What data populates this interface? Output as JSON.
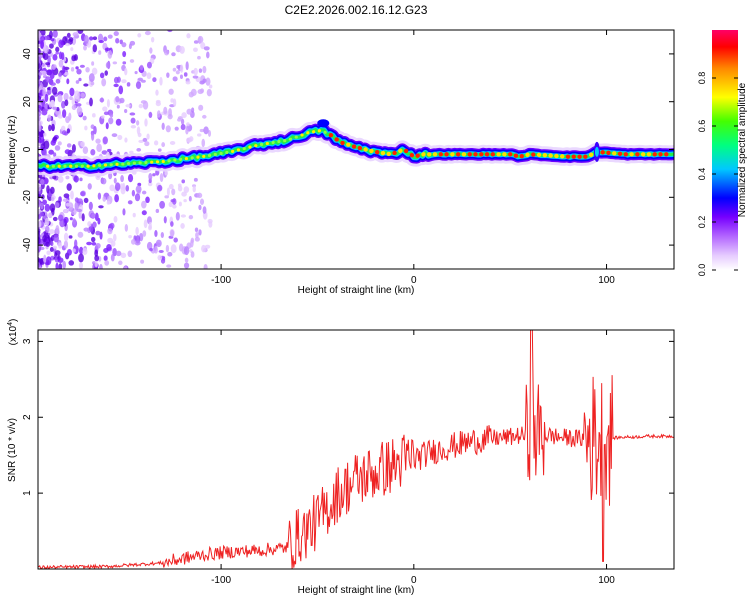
{
  "chart_data": [
    {
      "type": "heatmap",
      "title": "C2E2.2026.002.16.12.G23",
      "xlabel": "Height of straight line (km)",
      "ylabel": "Frequency (Hz)",
      "xlim": [
        -195,
        135
      ],
      "ylim": [
        -50,
        50
      ],
      "x_ticks": [
        -100,
        0,
        100
      ],
      "y_ticks": [
        -40,
        -20,
        0,
        20,
        40
      ],
      "colorbar": {
        "label": "Normalized spectral amplitude",
        "range": [
          0.0,
          1.0
        ],
        "ticks": [
          "0.0",
          "0.2",
          "0.4",
          "0.6",
          "0.8"
        ],
        "colors": [
          "#ffffff",
          "#d9b3ff",
          "#8800ff",
          "#0000ff",
          "#00ffff",
          "#00ff00",
          "#ffff00",
          "#ff8800",
          "#ff0000",
          "#ff0066"
        ]
      },
      "ridge": {
        "x": [
          -195,
          -170,
          -150,
          -130,
          -110,
          -95,
          -80,
          -65,
          -55,
          -48,
          -43,
          -38,
          -30,
          -20,
          -12,
          -5,
          0,
          5,
          20,
          50,
          55,
          60,
          80,
          90,
          95,
          110,
          125,
          135
        ],
        "freq": [
          -7,
          -7,
          -6,
          -5,
          -3,
          -1,
          2,
          4,
          7,
          8,
          6,
          3,
          1,
          -1,
          -2,
          0,
          -3,
          -2,
          -2,
          -2,
          -3,
          -2,
          -3,
          -3,
          -1,
          -2,
          -2,
          -2
        ]
      }
    },
    {
      "type": "line",
      "xlabel": "Height of straight line (km)",
      "ylabel": "SNR (10 * v/v)",
      "scale_label": "(x10",
      "scale_exponent": "4",
      "xlim": [
        -195,
        135
      ],
      "ylim": [
        0,
        3.15
      ],
      "x_ticks": [
        -100,
        0,
        100
      ],
      "y_ticks": [
        1,
        2,
        3
      ],
      "series": [
        {
          "name": "SNR",
          "color": "#ee2222",
          "x": [
            -195,
            -160,
            -130,
            -110,
            -95,
            -80,
            -65,
            -60,
            -50,
            -40,
            -30,
            -20,
            -10,
            0,
            10,
            20,
            30,
            40,
            50,
            55,
            60,
            62,
            65,
            70,
            75,
            80,
            85,
            90,
            95,
            100,
            105,
            110,
            115,
            120,
            125,
            130,
            135
          ],
          "values": [
            0.02,
            0.03,
            0.08,
            0.18,
            0.22,
            0.24,
            0.28,
            0.4,
            0.6,
            0.95,
            1.15,
            1.25,
            1.35,
            1.45,
            1.55,
            1.62,
            1.68,
            1.72,
            1.74,
            1.76,
            1.76,
            1.8,
            1.78,
            1.76,
            1.74,
            1.73,
            1.72,
            1.72,
            1.72,
            1.72,
            1.73,
            1.74,
            1.74,
            1.75,
            1.75,
            1.75,
            1.75
          ]
        }
      ]
    }
  ]
}
